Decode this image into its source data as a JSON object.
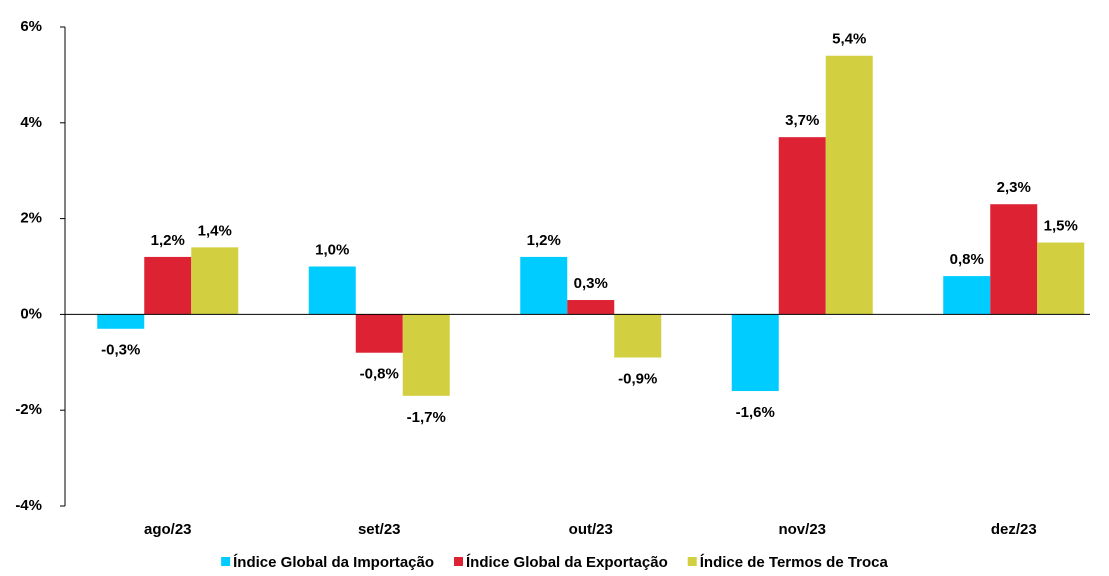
{
  "chart_data": {
    "type": "bar",
    "categories": [
      "ago/23",
      "set/23",
      "out/23",
      "nov/23",
      "dez/23"
    ],
    "series": [
      {
        "name": "Índice Global da Importação",
        "color": "#00ccff",
        "values": [
          -0.3,
          1.0,
          1.2,
          -1.6,
          0.8
        ],
        "value_labels": [
          "-0,3%",
          "1,0%",
          "1,2%",
          "-1,6%",
          "0,8%"
        ]
      },
      {
        "name": "Índice Global da Exportação",
        "color": "#dd2233",
        "values": [
          1.2,
          -0.8,
          0.3,
          3.7,
          2.3
        ],
        "value_labels": [
          "1,2%",
          "-0,8%",
          "0,3%",
          "3,7%",
          "2,3%"
        ]
      },
      {
        "name": "Índice de Termos de Troca",
        "color": "#d2d040",
        "values": [
          1.4,
          -1.7,
          -0.9,
          5.4,
          1.5
        ],
        "value_labels": [
          "1,4%",
          "-1,7%",
          "-0,9%",
          "5,4%",
          "1,5%"
        ]
      }
    ],
    "ylim": [
      -4,
      6
    ],
    "yticks": [
      {
        "value": -4,
        "label": "-4%"
      },
      {
        "value": -2,
        "label": "-2%"
      },
      {
        "value": 0,
        "label": "0%"
      },
      {
        "value": 2,
        "label": "2%"
      },
      {
        "value": 4,
        "label": "4%"
      },
      {
        "value": 6,
        "label": "6%"
      }
    ],
    "legend": "bottom"
  }
}
